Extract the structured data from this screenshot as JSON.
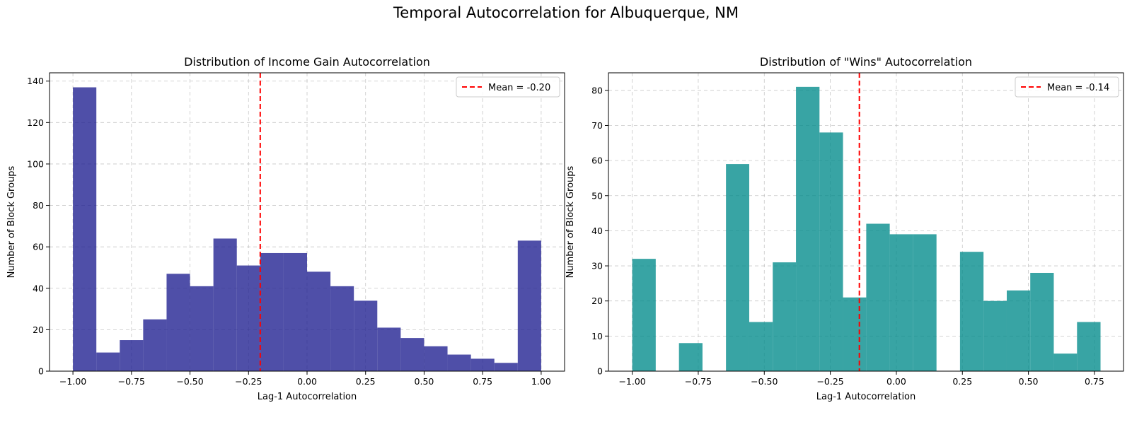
{
  "figure": {
    "title": "Temporal Autocorrelation for Albuquerque, NM"
  },
  "chart_data": [
    {
      "type": "bar",
      "title": "Distribution of Income Gain Autocorrelation",
      "xlabel": "Lag-1 Autocorrelation",
      "ylabel": "Number of Block Groups",
      "xlim": [
        -1.1,
        1.1
      ],
      "ylim": [
        0,
        144
      ],
      "xticks": [
        -1.0,
        -0.75,
        -0.5,
        -0.25,
        0.0,
        0.25,
        0.5,
        0.75,
        1.0
      ],
      "xtick_labels": [
        "−1.00",
        "−0.75",
        "−0.50",
        "−0.25",
        "0.00",
        "0.25",
        "0.50",
        "0.75",
        "1.00"
      ],
      "yticks": [
        0,
        20,
        40,
        60,
        80,
        100,
        120,
        140
      ],
      "ytick_labels": [
        "0",
        "20",
        "40",
        "60",
        "80",
        "100",
        "120",
        "140"
      ],
      "grid": true,
      "color": "#1e1e8f",
      "bin_edges": [
        -1.0,
        -0.9,
        -0.8,
        -0.7,
        -0.6,
        -0.5,
        -0.4,
        -0.3,
        -0.2,
        -0.1,
        0.0,
        0.1,
        0.2,
        0.3,
        0.4,
        0.5,
        0.6,
        0.7,
        0.8,
        0.9,
        1.0
      ],
      "values": [
        137,
        9,
        15,
        25,
        47,
        41,
        64,
        51,
        57,
        57,
        48,
        41,
        34,
        21,
        16,
        12,
        8,
        6,
        4,
        63
      ],
      "mean_line": {
        "x": -0.2,
        "label": "Mean = -0.20",
        "color": "#ff0000"
      },
      "legend_position": "top-right"
    },
    {
      "type": "bar",
      "title": "Distribution of \"Wins\" Autocorrelation",
      "xlabel": "Lag-1 Autocorrelation",
      "ylabel": "Number of Block Groups",
      "xlim": [
        -1.09,
        0.86
      ],
      "ylim": [
        0,
        85
      ],
      "xticks": [
        -1.0,
        -0.75,
        -0.5,
        -0.25,
        0.0,
        0.25,
        0.5,
        0.75
      ],
      "xtick_labels": [
        "−1.00",
        "−0.75",
        "−0.50",
        "−0.25",
        "0.00",
        "0.25",
        "0.50",
        "0.75"
      ],
      "yticks": [
        0,
        10,
        20,
        30,
        40,
        50,
        60,
        70,
        80
      ],
      "ytick_labels": [
        "0",
        "10",
        "20",
        "30",
        "40",
        "50",
        "60",
        "70",
        "80"
      ],
      "grid": true,
      "color": "#008b8b",
      "bin_edges": [
        -1.0,
        -0.911,
        -0.823,
        -0.734,
        -0.645,
        -0.557,
        -0.468,
        -0.38,
        -0.291,
        -0.202,
        -0.114,
        -0.025,
        0.064,
        0.152,
        0.241,
        0.33,
        0.418,
        0.507,
        0.596,
        0.684,
        0.773
      ],
      "values": [
        32,
        0,
        8,
        0,
        59,
        14,
        31,
        81,
        68,
        21,
        42,
        39,
        39,
        0,
        34,
        20,
        23,
        28,
        5,
        14
      ],
      "mean_line": {
        "x": -0.14,
        "label": "Mean = -0.14",
        "color": "#ff0000"
      },
      "legend_position": "top-right"
    }
  ]
}
